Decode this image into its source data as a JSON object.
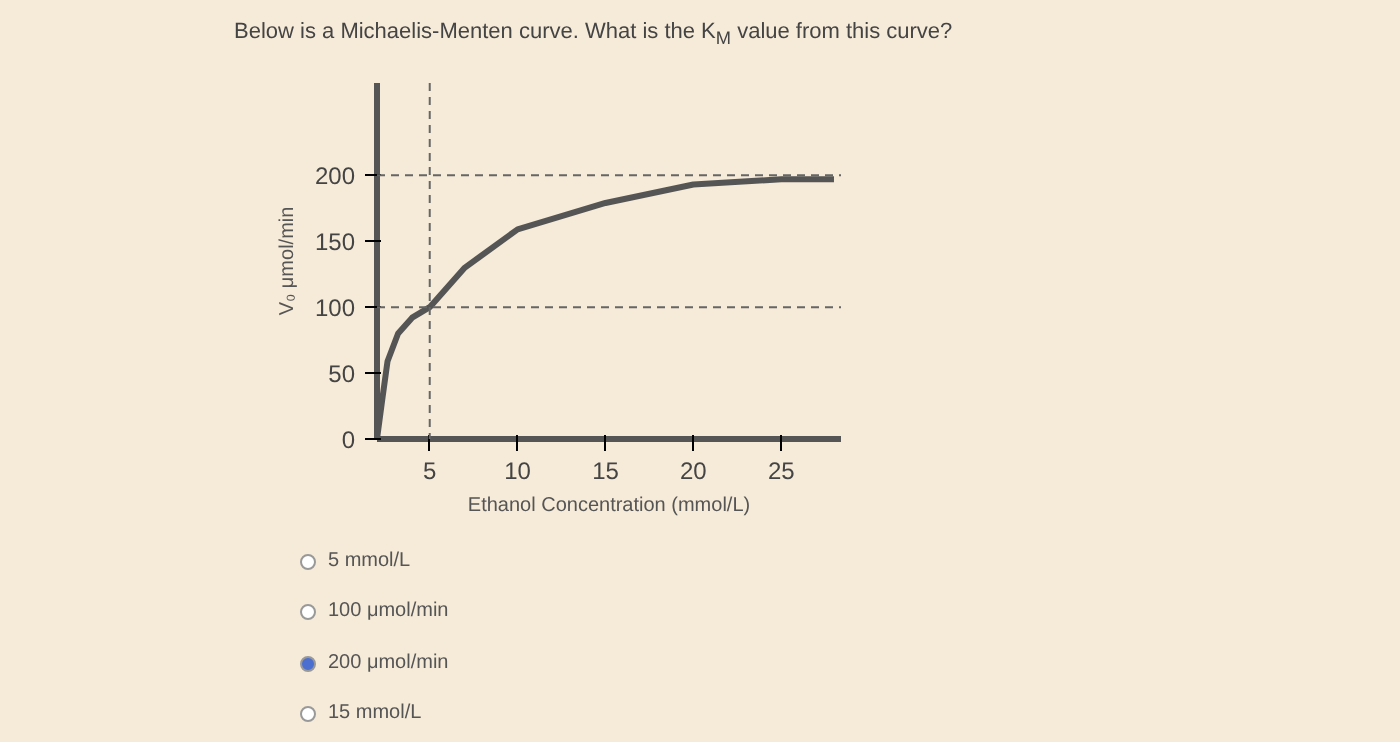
{
  "chart_data": {
    "type": "line",
    "title": "Below is a Michaelis-Menten curve. What is the K$_{M}$ value from this curve?",
    "xlabel": "Ethanol Concentration (mmol/L)",
    "ylabel": "V₀ μmol/min",
    "x": [
      2,
      2.3,
      2.6,
      3.2,
      4,
      5,
      7,
      10,
      15,
      20,
      25,
      28
    ],
    "series": [
      {
        "color": "#555555",
        "values": [
          0,
          30,
          59,
          80,
          92,
          100,
          130,
          159,
          179,
          193,
          197,
          197
        ]
      }
    ],
    "xlim": [
      2,
      28.4
    ],
    "ylim": [
      0,
      270
    ],
    "xticks": [
      5,
      10,
      15,
      20,
      25
    ],
    "yticks": [
      0,
      50,
      100,
      150,
      200
    ],
    "ref_lines": [
      {
        "axis": "y",
        "value": 200,
        "label": null,
        "line_style": "dashed"
      },
      {
        "axis": "y",
        "value": 100,
        "label": null,
        "line_style": "dashed"
      },
      {
        "axis": "x",
        "value": 5,
        "label": null,
        "line_style": "dashed"
      }
    ],
    "annotations": [
      "5 mmol/L",
      "100 μmol/min",
      "200 μmol/min",
      "15 mmol/L"
    ],
    "grid": false,
    "marker": "none",
    "line_style": "solid"
  }
}
